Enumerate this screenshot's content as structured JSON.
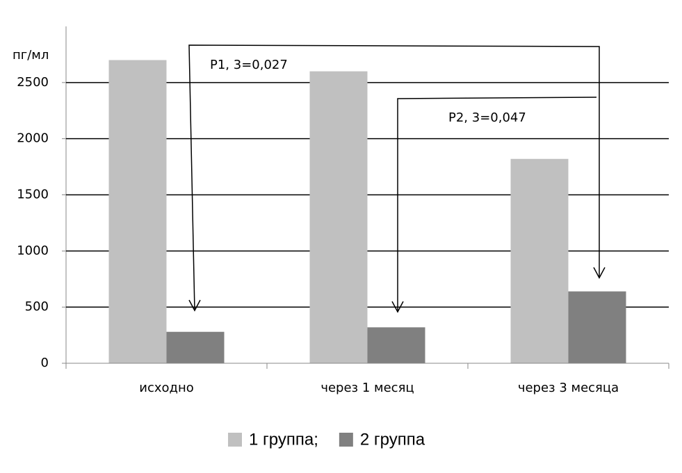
{
  "chart_data": {
    "type": "bar",
    "y_label": "пг/мл",
    "categories": [
      "исходно",
      "через 1 месяц",
      "через 3 месяца"
    ],
    "series": [
      {
        "name": "1 группа;",
        "color": "#c0c0c0",
        "values": [
          2700,
          2600,
          1820
        ]
      },
      {
        "name": "2 группа",
        "color": "#808080",
        "values": [
          280,
          320,
          640
        ]
      }
    ],
    "ylim": [
      0,
      3000
    ],
    "yticks": [
      0,
      500,
      1000,
      1500,
      2000,
      2500
    ],
    "grid": true,
    "annotations": [
      "P1, 3=0,027",
      "P2, 3=0,047"
    ]
  }
}
